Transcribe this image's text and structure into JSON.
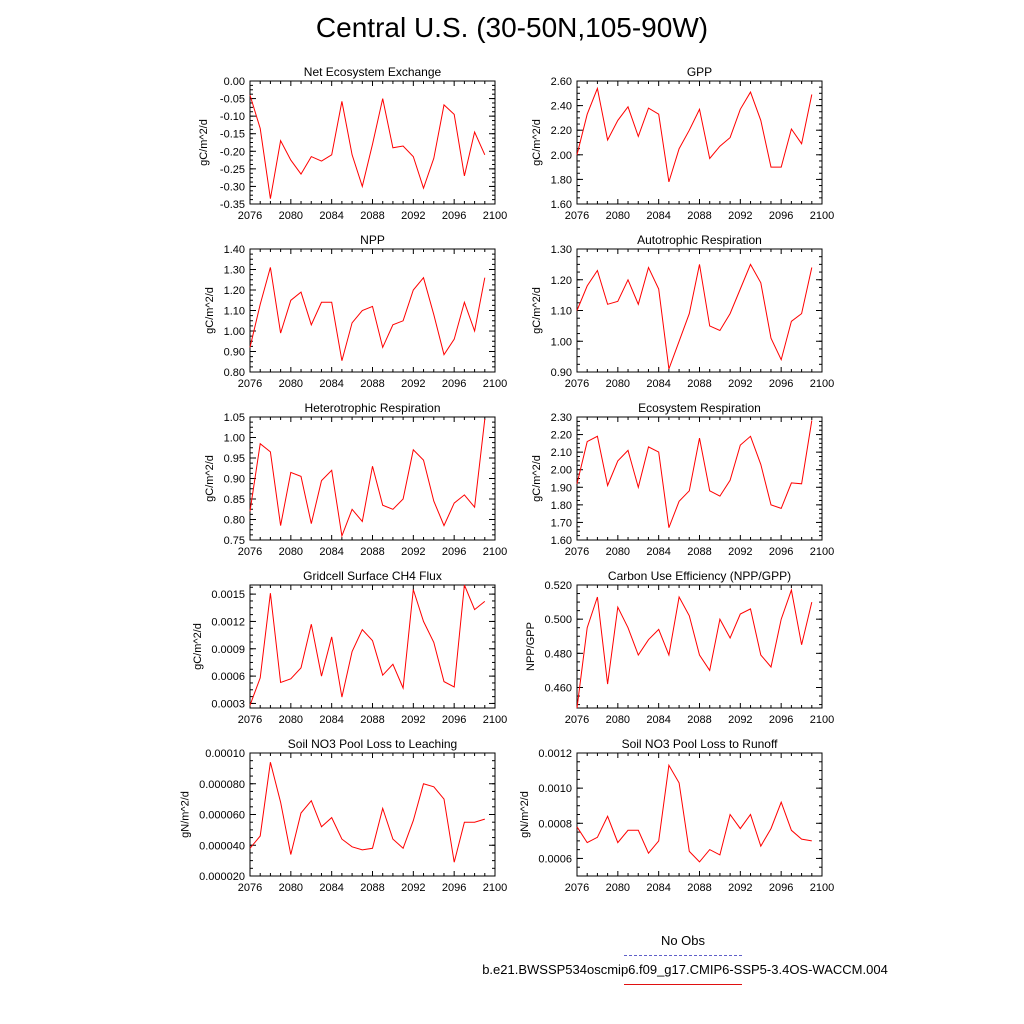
{
  "title": "Central U.S. (30-50N,105-90W)",
  "line_color": "#ff0000",
  "legend": {
    "obs_label": "No Obs",
    "obs_color": "#6060c8",
    "case_label": "b.e21.BWSSP534oscmip6.f09_g17.CMIP6-SSP5-3.4OS-WACCM.004",
    "case_color": "#e01010"
  },
  "chart_data": [
    {
      "type": "line",
      "title": "Net Ecosystem Exchange",
      "ylabel": "gC/m^2/d",
      "xlim": [
        2076,
        2100
      ],
      "ylim": [
        -0.35,
        0.0
      ],
      "yticks": [
        "0.00",
        "-0.05",
        "-0.10",
        "-0.15",
        "-0.20",
        "-0.25",
        "-0.30",
        "-0.35"
      ],
      "xticks": [
        "2076",
        "2080",
        "2084",
        "2088",
        "2092",
        "2096",
        "2100"
      ],
      "x": [
        2076,
        2077,
        2078,
        2079,
        2080,
        2081,
        2082,
        2083,
        2084,
        2085,
        2086,
        2087,
        2088,
        2089,
        2090,
        2091,
        2092,
        2093,
        2094,
        2095,
        2096,
        2097,
        2098,
        2099
      ],
      "values": [
        -0.04,
        -0.135,
        -0.335,
        -0.17,
        -0.225,
        -0.265,
        -0.215,
        -0.228,
        -0.21,
        -0.058,
        -0.21,
        -0.3,
        -0.18,
        -0.05,
        -0.19,
        -0.185,
        -0.215,
        -0.305,
        -0.22,
        -0.068,
        -0.095,
        -0.27,
        -0.145,
        -0.21
      ]
    },
    {
      "type": "line",
      "title": "GPP",
      "ylabel": "gC/m^2/d",
      "xlim": [
        2076,
        2100
      ],
      "ylim": [
        1.6,
        2.6
      ],
      "yticks": [
        "2.60",
        "2.40",
        "2.20",
        "2.00",
        "1.80",
        "1.60"
      ],
      "xticks": [
        "2076",
        "2080",
        "2084",
        "2088",
        "2092",
        "2096",
        "2100"
      ],
      "x": [
        2076,
        2077,
        2078,
        2079,
        2080,
        2081,
        2082,
        2083,
        2084,
        2085,
        2086,
        2087,
        2088,
        2089,
        2090,
        2091,
        2092,
        2093,
        2094,
        2095,
        2096,
        2097,
        2098,
        2099
      ],
      "values": [
        2.0,
        2.33,
        2.54,
        2.12,
        2.28,
        2.39,
        2.15,
        2.38,
        2.33,
        1.78,
        2.05,
        2.2,
        2.37,
        1.97,
        2.07,
        2.14,
        2.37,
        2.51,
        2.28,
        1.9,
        1.9,
        2.21,
        2.09,
        2.49
      ]
    },
    {
      "type": "line",
      "title": "NPP",
      "ylabel": "gC/m^2/d",
      "xlim": [
        2076,
        2100
      ],
      "ylim": [
        0.8,
        1.4
      ],
      "yticks": [
        "1.40",
        "1.30",
        "1.20",
        "1.10",
        "1.00",
        "0.90",
        "0.80"
      ],
      "xticks": [
        "2076",
        "2080",
        "2084",
        "2088",
        "2092",
        "2096",
        "2100"
      ],
      "x": [
        2076,
        2077,
        2078,
        2079,
        2080,
        2081,
        2082,
        2083,
        2084,
        2085,
        2086,
        2087,
        2088,
        2089,
        2090,
        2091,
        2092,
        2093,
        2094,
        2095,
        2096,
        2097,
        2098,
        2099
      ],
      "values": [
        0.92,
        1.13,
        1.31,
        0.99,
        1.15,
        1.19,
        1.03,
        1.14,
        1.14,
        0.855,
        1.04,
        1.1,
        1.12,
        0.92,
        1.03,
        1.05,
        1.2,
        1.26,
        1.08,
        0.885,
        0.96,
        1.14,
        1.0,
        1.26
      ]
    },
    {
      "type": "line",
      "title": "Autotrophic Respiration",
      "ylabel": "gC/m^2/d",
      "xlim": [
        2076,
        2100
      ],
      "ylim": [
        0.9,
        1.3
      ],
      "yticks": [
        "1.30",
        "1.20",
        "1.10",
        "1.00",
        "0.90"
      ],
      "xticks": [
        "2076",
        "2080",
        "2084",
        "2088",
        "2092",
        "2096",
        "2100"
      ],
      "x": [
        2076,
        2077,
        2078,
        2079,
        2080,
        2081,
        2082,
        2083,
        2084,
        2085,
        2086,
        2087,
        2088,
        2089,
        2090,
        2091,
        2092,
        2093,
        2094,
        2095,
        2096,
        2097,
        2098,
        2099
      ],
      "values": [
        1.1,
        1.18,
        1.23,
        1.12,
        1.13,
        1.2,
        1.12,
        1.24,
        1.17,
        0.91,
        1.0,
        1.09,
        1.25,
        1.05,
        1.035,
        1.09,
        1.17,
        1.25,
        1.19,
        1.01,
        0.94,
        1.065,
        1.09,
        1.24
      ]
    },
    {
      "type": "line",
      "title": "Heterotrophic Respiration",
      "ylabel": "gC/m^2/d",
      "xlim": [
        2076,
        2100
      ],
      "ylim": [
        0.75,
        1.05
      ],
      "yticks": [
        "1.05",
        "1.00",
        "0.95",
        "0.90",
        "0.85",
        "0.80",
        "0.75"
      ],
      "xticks": [
        "2076",
        "2080",
        "2084",
        "2088",
        "2092",
        "2096",
        "2100"
      ],
      "x": [
        2076,
        2077,
        2078,
        2079,
        2080,
        2081,
        2082,
        2083,
        2084,
        2085,
        2086,
        2087,
        2088,
        2089,
        2090,
        2091,
        2092,
        2093,
        2094,
        2095,
        2096,
        2097,
        2098,
        2099
      ],
      "values": [
        0.82,
        0.985,
        0.965,
        0.785,
        0.915,
        0.905,
        0.79,
        0.895,
        0.92,
        0.76,
        0.825,
        0.795,
        0.93,
        0.835,
        0.825,
        0.85,
        0.97,
        0.945,
        0.845,
        0.785,
        0.84,
        0.86,
        0.83,
        1.045
      ]
    },
    {
      "type": "line",
      "title": "Ecosystem Respiration",
      "ylabel": "gC/m^2/d",
      "xlim": [
        2076,
        2100
      ],
      "ylim": [
        1.6,
        2.3
      ],
      "yticks": [
        "2.30",
        "2.20",
        "2.10",
        "2.00",
        "1.90",
        "1.80",
        "1.70",
        "1.60"
      ],
      "xticks": [
        "2076",
        "2080",
        "2084",
        "2088",
        "2092",
        "2096",
        "2100"
      ],
      "x": [
        2076,
        2077,
        2078,
        2079,
        2080,
        2081,
        2082,
        2083,
        2084,
        2085,
        2086,
        2087,
        2088,
        2089,
        2090,
        2091,
        2092,
        2093,
        2094,
        2095,
        2096,
        2097,
        2098,
        2099
      ],
      "values": [
        1.92,
        2.16,
        2.19,
        1.91,
        2.05,
        2.11,
        1.9,
        2.13,
        2.1,
        1.67,
        1.82,
        1.88,
        2.18,
        1.88,
        1.85,
        1.94,
        2.14,
        2.19,
        2.03,
        1.8,
        1.78,
        1.925,
        1.92,
        2.28
      ]
    },
    {
      "type": "line",
      "title": "Gridcell Surface CH4 Flux",
      "ylabel": "gC/m^2/d",
      "xlim": [
        2076,
        2100
      ],
      "ylim": [
        0.00025,
        0.0016
      ],
      "yticks": [
        "0.0015",
        "0.0012",
        "0.0009",
        "0.0006",
        "0.0003"
      ],
      "ytick_values": [
        0.0015,
        0.0012,
        0.0009,
        0.0006,
        0.0003
      ],
      "xticks": [
        "2076",
        "2080",
        "2084",
        "2088",
        "2092",
        "2096",
        "2100"
      ],
      "x": [
        2076,
        2077,
        2078,
        2079,
        2080,
        2081,
        2082,
        2083,
        2084,
        2085,
        2086,
        2087,
        2088,
        2089,
        2090,
        2091,
        2092,
        2093,
        2094,
        2095,
        2096,
        2097,
        2098,
        2099
      ],
      "values": [
        0.00028,
        0.00058,
        0.00151,
        0.00053,
        0.00057,
        0.00069,
        0.00117,
        0.0006,
        0.00103,
        0.00037,
        0.00087,
        0.00111,
        0.00099,
        0.00061,
        0.00073,
        0.00047,
        0.00155,
        0.0012,
        0.00097,
        0.00054,
        0.00048,
        0.0016,
        0.00133,
        0.00142
      ]
    },
    {
      "type": "line",
      "title": "Carbon Use Efficiency (NPP/GPP)",
      "ylabel": "NPP/GPP",
      "xlim": [
        2076,
        2100
      ],
      "ylim": [
        0.448,
        0.52
      ],
      "yticks": [
        "0.520",
        "0.500",
        "0.480",
        "0.460"
      ],
      "ytick_values": [
        0.52,
        0.5,
        0.48,
        0.46
      ],
      "xticks": [
        "2076",
        "2080",
        "2084",
        "2088",
        "2092",
        "2096",
        "2100"
      ],
      "x": [
        2076,
        2077,
        2078,
        2079,
        2080,
        2081,
        2082,
        2083,
        2084,
        2085,
        2086,
        2087,
        2088,
        2089,
        2090,
        2091,
        2092,
        2093,
        2094,
        2095,
        2096,
        2097,
        2098,
        2099
      ],
      "values": [
        0.448,
        0.495,
        0.513,
        0.462,
        0.507,
        0.495,
        0.479,
        0.488,
        0.494,
        0.479,
        0.513,
        0.502,
        0.479,
        0.47,
        0.5,
        0.489,
        0.503,
        0.506,
        0.479,
        0.472,
        0.5,
        0.517,
        0.485,
        0.51
      ]
    },
    {
      "type": "line",
      "title": "Soil NO3 Pool Loss to Leaching",
      "ylabel": "gN/m^2/d",
      "xlim": [
        2076,
        2100
      ],
      "ylim": [
        2e-05,
        0.0001
      ],
      "yticks": [
        "0.00010",
        "0.000080",
        "0.000060",
        "0.000040",
        "0.000020"
      ],
      "ytick_values": [
        0.0001,
        8e-05,
        6e-05,
        4e-05,
        2e-05
      ],
      "xticks": [
        "2076",
        "2080",
        "2084",
        "2088",
        "2092",
        "2096",
        "2100"
      ],
      "x": [
        2076,
        2077,
        2078,
        2079,
        2080,
        2081,
        2082,
        2083,
        2084,
        2085,
        2086,
        2087,
        2088,
        2089,
        2090,
        2091,
        2092,
        2093,
        2094,
        2095,
        2096,
        2097,
        2098,
        2099
      ],
      "values": [
        3.8e-05,
        4.6e-05,
        9.4e-05,
        6.8e-05,
        3.4e-05,
        6.1e-05,
        6.9e-05,
        5.2e-05,
        5.8e-05,
        4.4e-05,
        3.9e-05,
        3.7e-05,
        3.8e-05,
        6.4e-05,
        4.4e-05,
        3.8e-05,
        5.6e-05,
        8e-05,
        7.8e-05,
        7e-05,
        2.9e-05,
        5.5e-05,
        5.5e-05,
        5.7e-05
      ]
    },
    {
      "type": "line",
      "title": "Soil NO3 Pool Loss to Runoff",
      "ylabel": "gN/m^2/d",
      "xlim": [
        2076,
        2100
      ],
      "ylim": [
        0.0005,
        0.0012
      ],
      "yticks": [
        "0.0012",
        "0.0010",
        "0.0008",
        "0.0006"
      ],
      "ytick_values": [
        0.0012,
        0.001,
        0.0008,
        0.0006
      ],
      "xticks": [
        "2076",
        "2080",
        "2084",
        "2088",
        "2092",
        "2096",
        "2100"
      ],
      "x": [
        2076,
        2077,
        2078,
        2079,
        2080,
        2081,
        2082,
        2083,
        2084,
        2085,
        2086,
        2087,
        2088,
        2089,
        2090,
        2091,
        2092,
        2093,
        2094,
        2095,
        2096,
        2097,
        2098,
        2099
      ],
      "values": [
        0.00078,
        0.00069,
        0.00072,
        0.00084,
        0.00069,
        0.00076,
        0.00076,
        0.00063,
        0.0007,
        0.00113,
        0.00103,
        0.00064,
        0.00058,
        0.00065,
        0.00062,
        0.00085,
        0.00077,
        0.00085,
        0.00067,
        0.00077,
        0.00092,
        0.00076,
        0.00071,
        0.0007
      ]
    }
  ]
}
